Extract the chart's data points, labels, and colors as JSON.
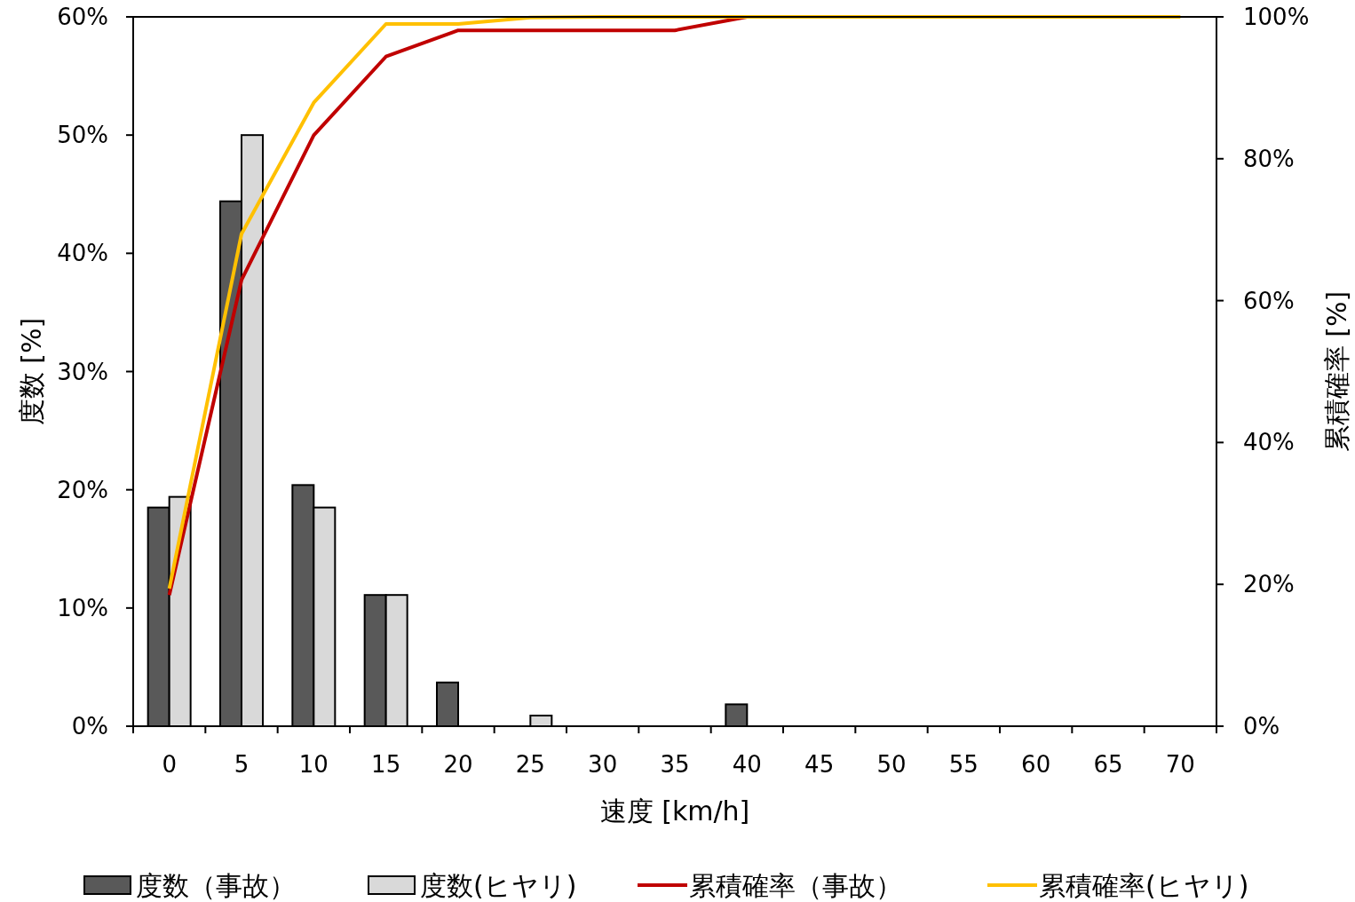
{
  "chart_data": {
    "type": "bar",
    "xlabel": "速度 [km/h]",
    "ylabel": "度数 [%]",
    "y2label": "累積確率 [%]",
    "categories": [
      "0",
      "5",
      "10",
      "15",
      "20",
      "25",
      "30",
      "35",
      "40",
      "45",
      "50",
      "55",
      "60",
      "65",
      "70"
    ],
    "series": [
      {
        "name": "度数（事故）",
        "type": "bar",
        "color": "#595959",
        "values": [
          18.5,
          44.4,
          20.4,
          11.1,
          3.7,
          0,
          0,
          0,
          1.85,
          0,
          0,
          0,
          0,
          0,
          0
        ]
      },
      {
        "name": "度数(ヒヤリ)",
        "type": "bar",
        "color": "#d9d9d9",
        "values": [
          19.4,
          50,
          18.5,
          11.1,
          0,
          0.9,
          0,
          0,
          0,
          0,
          0,
          0,
          0,
          0,
          0
        ]
      },
      {
        "name": "累積確率（事故）",
        "type": "line",
        "axis": "y2",
        "color": "#c00000",
        "values": [
          18.5,
          62.9,
          83.3,
          94.4,
          98.1,
          98.1,
          98.1,
          98.1,
          100,
          null,
          null,
          null,
          null,
          null,
          null
        ]
      },
      {
        "name": "累積確率(ヒヤリ)",
        "type": "line",
        "axis": "y2",
        "color": "#ffc000",
        "values": [
          19.4,
          69.4,
          87.9,
          99,
          99,
          99.9,
          100,
          100,
          100,
          100,
          100,
          100,
          100,
          100,
          100
        ]
      }
    ],
    "ylim": [
      0,
      60
    ],
    "yticks": [
      {
        "value": 0,
        "label": "0%"
      },
      {
        "value": 10,
        "label": "10%"
      },
      {
        "value": 20,
        "label": "20%"
      },
      {
        "value": 30,
        "label": "30%"
      },
      {
        "value": 40,
        "label": "40%"
      },
      {
        "value": 50,
        "label": "50%"
      },
      {
        "value": 60,
        "label": "60%"
      }
    ],
    "y2lim": [
      0,
      100
    ],
    "y2ticks": [
      {
        "value": 0,
        "label": "0%"
      },
      {
        "value": 20,
        "label": "20%"
      },
      {
        "value": 40,
        "label": "40%"
      },
      {
        "value": 60,
        "label": "60%"
      },
      {
        "value": 80,
        "label": "80%"
      },
      {
        "value": 100,
        "label": "100%"
      }
    ],
    "legend": "bottom",
    "grid": false
  }
}
